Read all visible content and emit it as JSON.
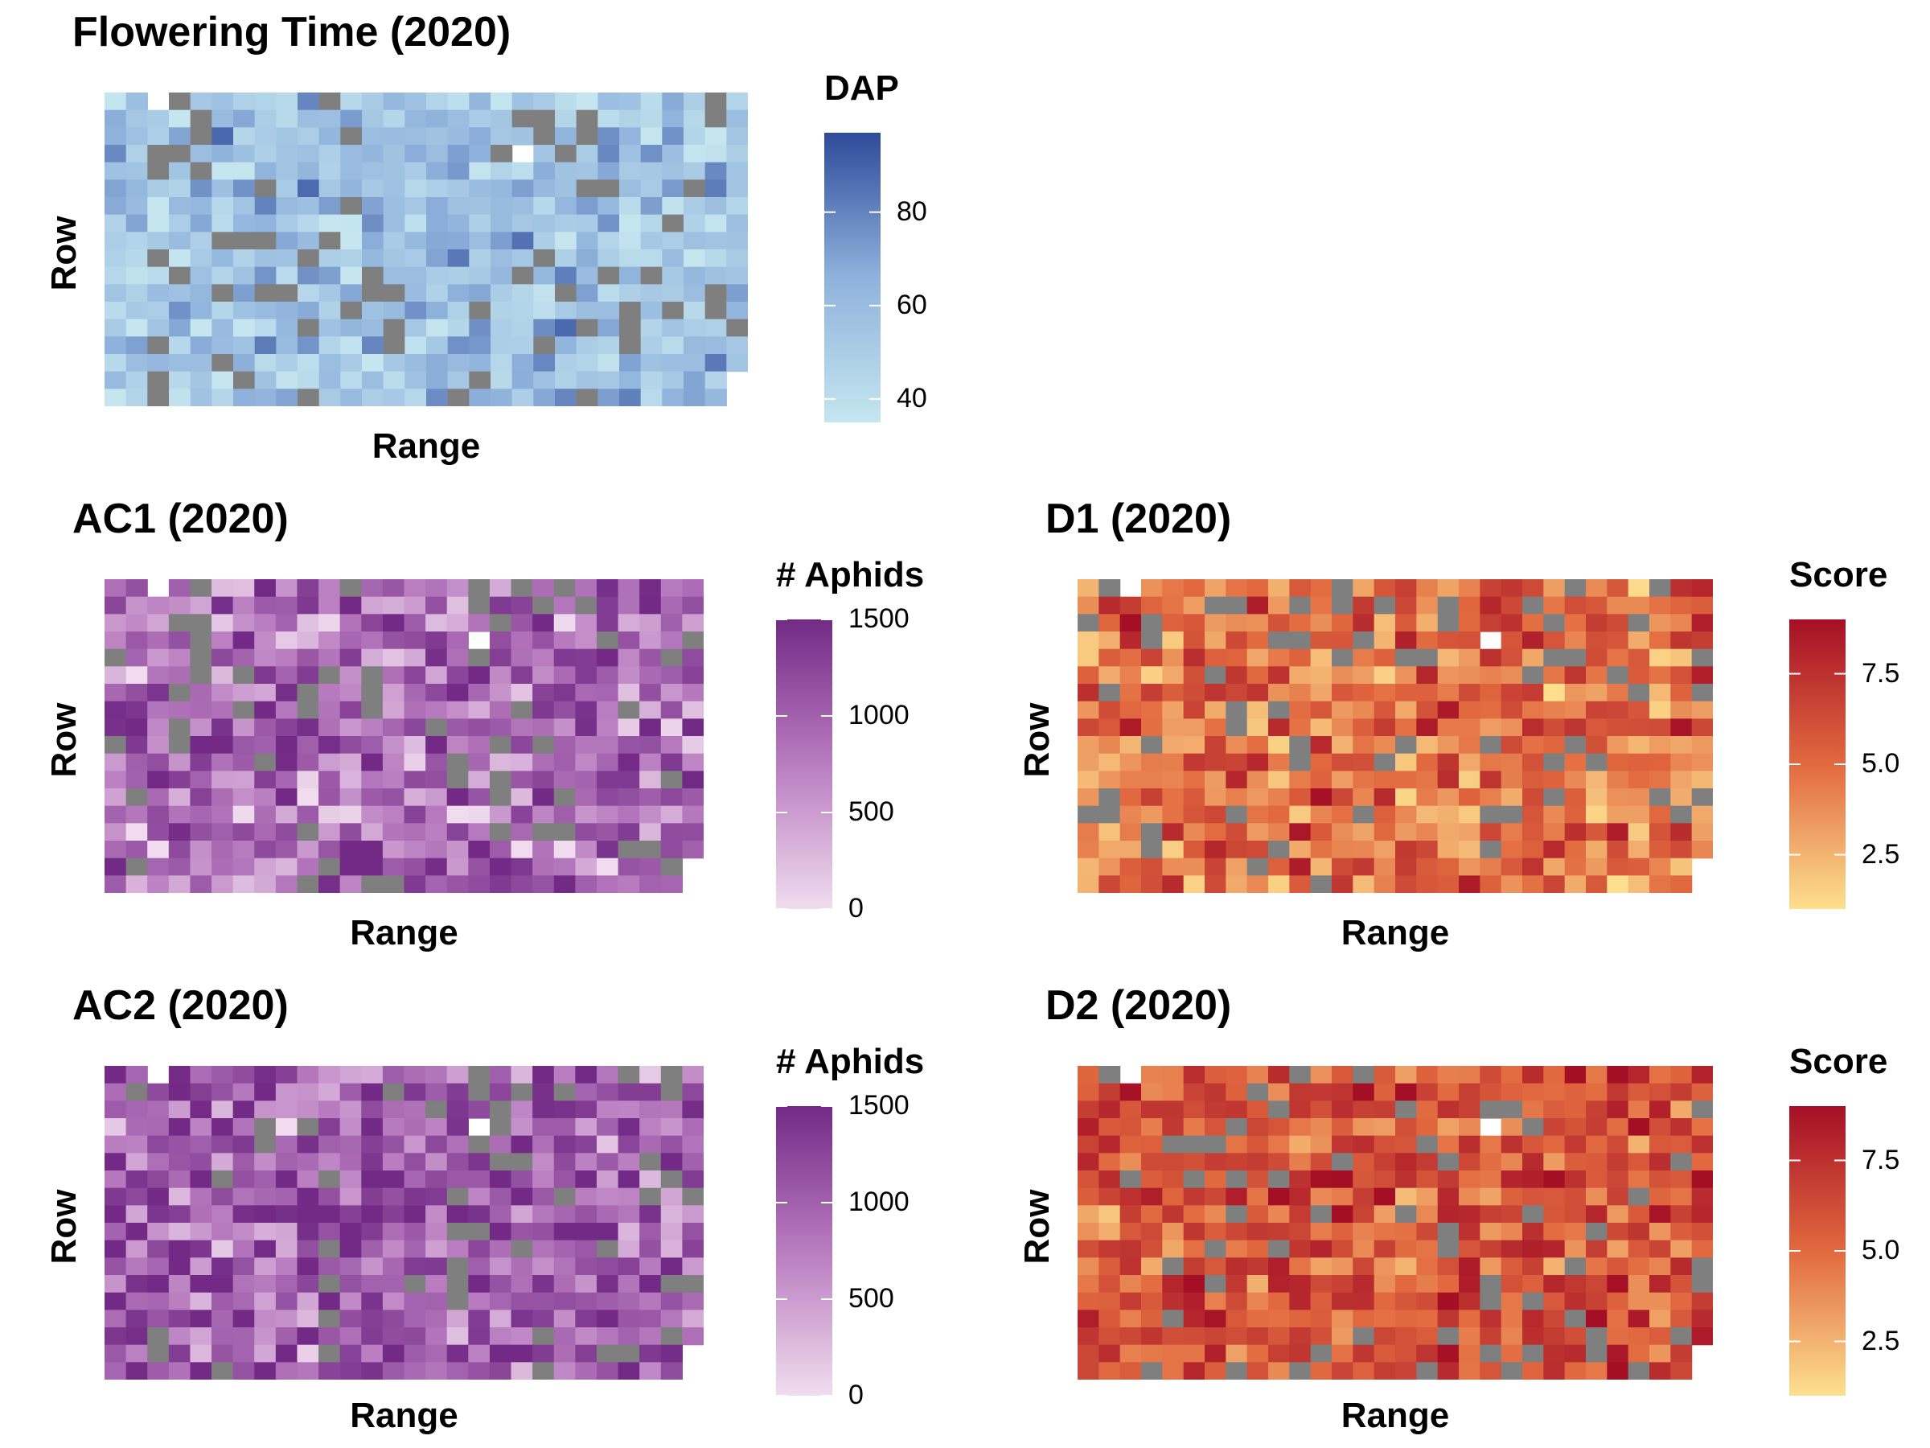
{
  "chart_data": [
    {
      "type": "heatmap",
      "id": "flowering",
      "title": "Flowering Time (2020)",
      "xlabel": "Range",
      "ylabel": "Row",
      "legend_title": "DAP",
      "legend_ticks": [
        "80",
        "60",
        "40"
      ],
      "legend_tick_values": [
        80,
        60,
        40
      ],
      "value_range": [
        35,
        97
      ],
      "colors": [
        "#c5e6ef",
        "#8fb2dc",
        "#2e4a9a"
      ],
      "missing_color": "#7f7f7f",
      "grid_cols": 30,
      "grid_rows": 18,
      "seed": 11,
      "mean": 55,
      "spread": 12,
      "missing_rate": 0.12
    },
    {
      "type": "heatmap",
      "id": "ac1",
      "title": "AC1 (2020)",
      "xlabel": "Range",
      "ylabel": "Row",
      "legend_title": "# Aphids",
      "legend_ticks": [
        "1500",
        "1000",
        "500",
        "0"
      ],
      "legend_tick_values": [
        1500,
        1000,
        500,
        0
      ],
      "value_range": [
        0,
        1500
      ],
      "colors": [
        "#f0dcee",
        "#b97cc0",
        "#722a86"
      ],
      "missing_color": "#7f7f7f",
      "grid_cols": 28,
      "grid_rows": 18,
      "seed": 23,
      "mean": 900,
      "spread": 420,
      "missing_rate": 0.1
    },
    {
      "type": "heatmap",
      "id": "d1",
      "title": "D1 (2020)",
      "xlabel": "Range",
      "ylabel": "Row",
      "legend_title": "Score",
      "legend_ticks": [
        "7.5",
        "5.0",
        "2.5"
      ],
      "legend_tick_values": [
        7.5,
        5.0,
        2.5
      ],
      "value_range": [
        1,
        9
      ],
      "colors": [
        "#fde08f",
        "#e2693f",
        "#a50f26"
      ],
      "missing_color": "#7f7f7f",
      "grid_cols": 30,
      "grid_rows": 18,
      "seed": 37,
      "mean": 4.8,
      "spread": 1.7,
      "missing_rate": 0.1
    },
    {
      "type": "heatmap",
      "id": "ac2",
      "title": "AC2 (2020)",
      "xlabel": "Range",
      "ylabel": "Row",
      "legend_title": "# Aphids",
      "legend_ticks": [
        "1500",
        "1000",
        "500",
        "0"
      ],
      "legend_tick_values": [
        1500,
        1000,
        500,
        0
      ],
      "value_range": [
        0,
        1500
      ],
      "colors": [
        "#f0dcee",
        "#b97cc0",
        "#722a86"
      ],
      "missing_color": "#7f7f7f",
      "grid_cols": 28,
      "grid_rows": 18,
      "seed": 51,
      "mean": 1000,
      "spread": 400,
      "missing_rate": 0.1
    },
    {
      "type": "heatmap",
      "id": "d2",
      "title": "D2 (2020)",
      "xlabel": "Range",
      "ylabel": "Row",
      "legend_title": "Score",
      "legend_ticks": [
        "7.5",
        "5.0",
        "2.5"
      ],
      "legend_tick_values": [
        7.5,
        5.0,
        2.5
      ],
      "value_range": [
        1,
        9
      ],
      "colors": [
        "#fde08f",
        "#e2693f",
        "#a50f26"
      ],
      "missing_color": "#7f7f7f",
      "grid_cols": 30,
      "grid_rows": 18,
      "seed": 67,
      "mean": 6.1,
      "spread": 1.5,
      "missing_rate": 0.1
    }
  ]
}
